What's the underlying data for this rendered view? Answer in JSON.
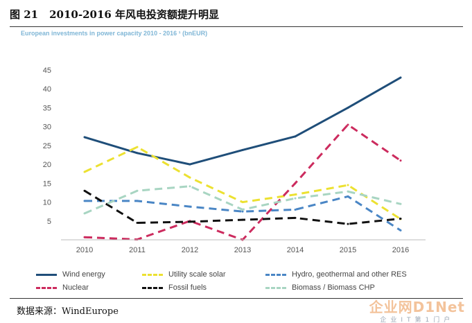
{
  "figure": {
    "number": "图 21",
    "title": "2010-2016 年风电投资额提升明显"
  },
  "source_label": "数据来源：WindEurope",
  "watermark": {
    "main": "企业网D1Net",
    "sub": "企业IT第1门户"
  },
  "chart_data": {
    "type": "line",
    "title": "European investments in power capacity 2010 - 2016 ¹ (bnEUR)",
    "xlabel": "",
    "ylabel": "",
    "x": [
      2010,
      2011,
      2012,
      2013,
      2014,
      2015,
      2016
    ],
    "ylim": [
      0,
      45
    ],
    "yticks": [
      5,
      10,
      15,
      20,
      25,
      30,
      35,
      40,
      45
    ],
    "grid": false,
    "legend_position": "bottom",
    "series": [
      {
        "name": "Wind energy",
        "color": "#1f4e79",
        "style": "solid",
        "values": [
          27.2,
          23.0,
          20.0,
          23.8,
          27.4,
          35.0,
          43.0
        ]
      },
      {
        "name": "Utility scale solar",
        "color": "#ece131",
        "style": "dashed",
        "values": [
          18.0,
          24.6,
          16.5,
          10.0,
          12.0,
          14.5,
          5.5
        ]
      },
      {
        "name": "Hydro, geothermal and other RES",
        "color": "#4a86c5",
        "style": "dashed",
        "values": [
          10.3,
          10.3,
          8.8,
          7.5,
          8.0,
          11.5,
          2.5
        ]
      },
      {
        "name": "Nuclear",
        "color": "#cc2b5e",
        "style": "dashed",
        "values": [
          0.7,
          0.1,
          5.0,
          0.0,
          15.0,
          30.5,
          21.0
        ]
      },
      {
        "name": "Fossil fuels",
        "color": "#111111",
        "style": "dashed",
        "values": [
          13.0,
          4.5,
          4.8,
          5.3,
          5.8,
          4.2,
          5.6
        ]
      },
      {
        "name": "Biomass / Biomass CHP",
        "color": "#a8d5c2",
        "style": "dashed",
        "values": [
          7.0,
          13.0,
          14.2,
          8.0,
          11.0,
          12.8,
          9.5
        ]
      }
    ]
  }
}
